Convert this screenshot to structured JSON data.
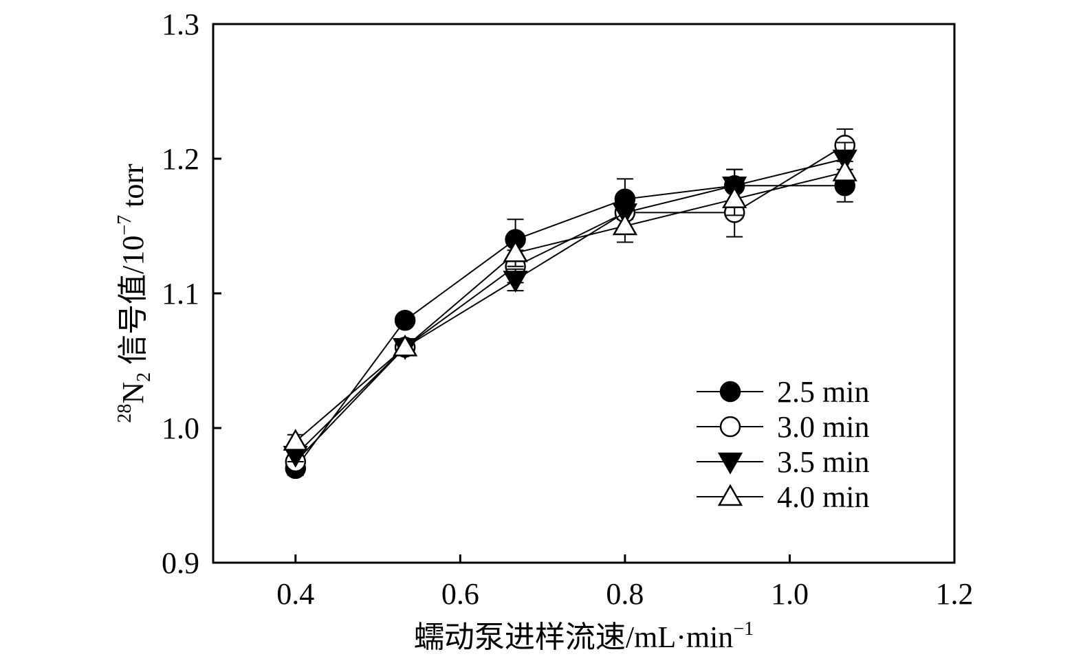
{
  "chart_data": {
    "type": "line",
    "xlabel": "蠕动泵进样流速/mL·min",
    "xlabel_superscript": "−1",
    "ylabel_prefix_superscript": "28",
    "ylabel_main": "N",
    "ylabel_subscript": "2",
    "ylabel_rest": " 信号值/10",
    "ylabel_superscript": "−7",
    "ylabel_unit": " torr",
    "xlim": [
      0.3,
      1.2
    ],
    "ylim": [
      0.9,
      1.3
    ],
    "x_ticks": [
      0.4,
      0.6,
      0.8,
      1.0,
      1.2
    ],
    "x_tick_labels": [
      "0.4",
      "0.6",
      "0.8",
      "1.0",
      "1.2"
    ],
    "y_ticks": [
      0.9,
      1.0,
      1.1,
      1.2,
      1.3
    ],
    "y_tick_labels": [
      "0.9",
      "1.0",
      "1.1",
      "1.2",
      "1.3"
    ],
    "grid": false,
    "legend_position": "bottom-right",
    "x": [
      0.4,
      0.533,
      0.667,
      0.8,
      0.933,
      1.067
    ],
    "series": [
      {
        "name": "2.5 min",
        "marker": "filled-circle",
        "values": [
          0.97,
          1.08,
          1.14,
          1.17,
          1.18,
          1.18
        ],
        "errors": [
          0.005,
          0.003,
          0.015,
          0.015,
          0.012,
          0.012
        ]
      },
      {
        "name": "3.0 min",
        "marker": "open-circle",
        "values": [
          0.975,
          1.06,
          1.12,
          1.16,
          1.16,
          1.21
        ],
        "errors": [
          0.005,
          0.003,
          0.012,
          0.012,
          0.018,
          0.012
        ]
      },
      {
        "name": "3.5 min",
        "marker": "filled-triangle-down",
        "values": [
          0.98,
          1.06,
          1.11,
          1.16,
          1.18,
          1.2
        ],
        "errors": [
          0.005,
          0.003,
          0.008,
          0.012,
          0.012,
          0.012
        ]
      },
      {
        "name": "4.0 min",
        "marker": "open-triangle-up",
        "values": [
          0.99,
          1.06,
          1.13,
          1.15,
          1.17,
          1.19
        ],
        "errors": [
          0.005,
          0.003,
          0.01,
          0.012,
          0.012,
          0.012
        ]
      }
    ],
    "colors": {
      "line": "#000000",
      "marker_fill_filled": "#000000",
      "marker_fill_open": "#ffffff"
    }
  }
}
